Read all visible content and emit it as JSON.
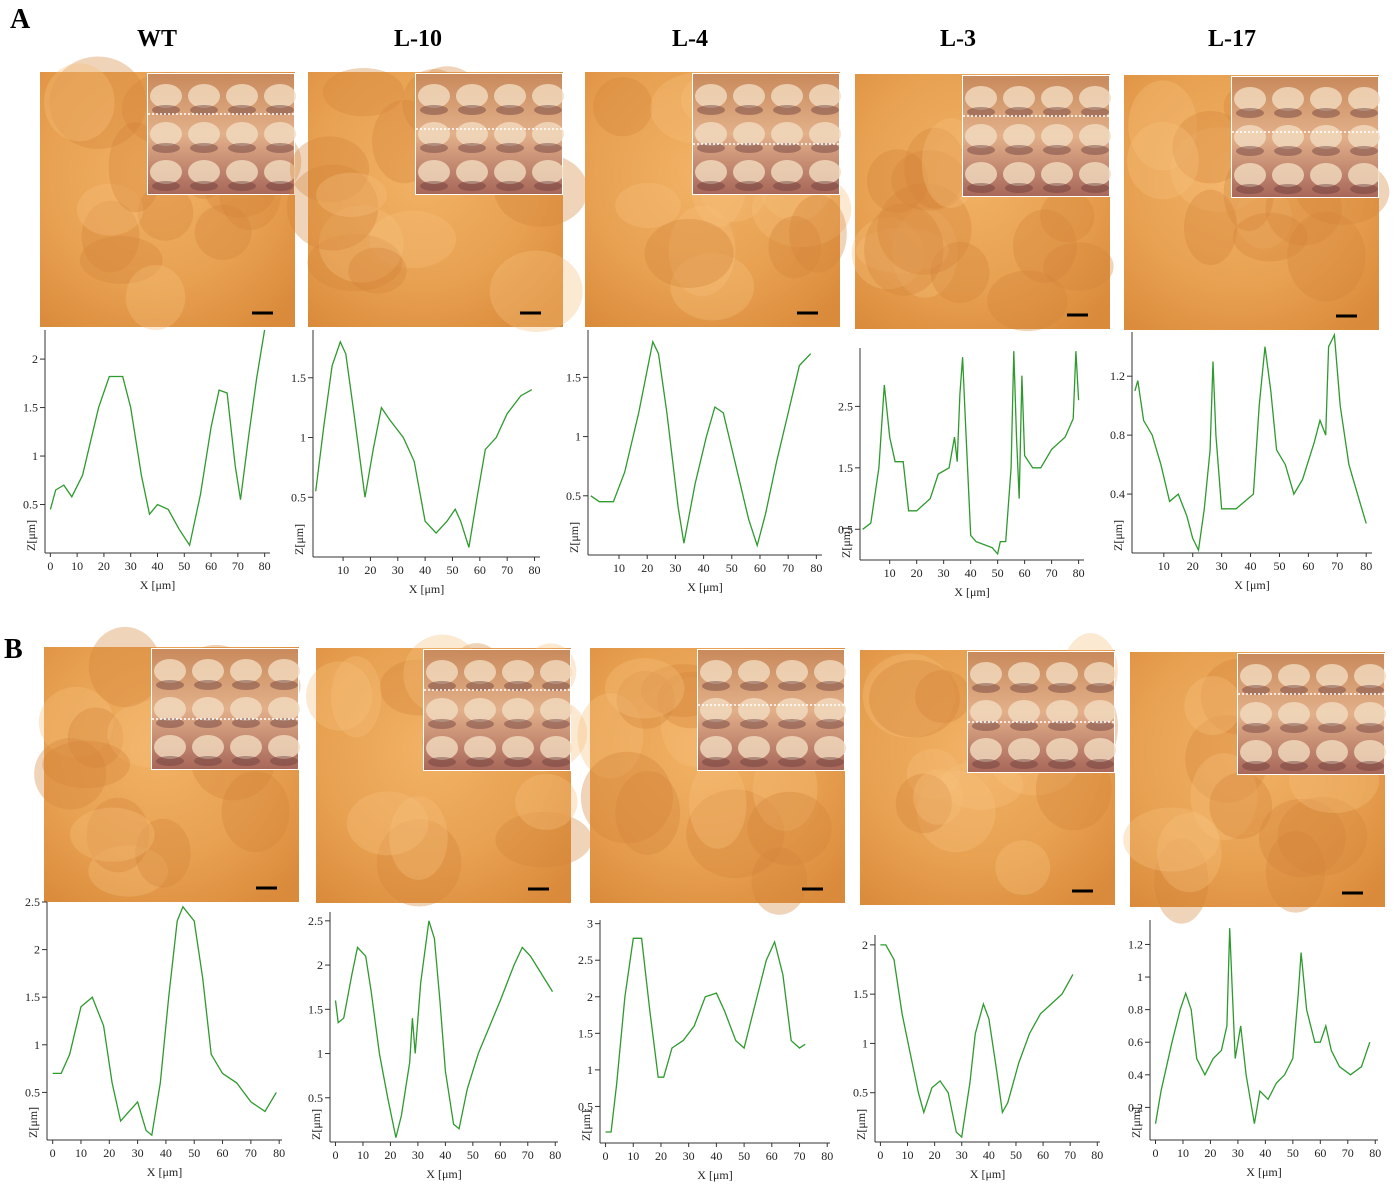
{
  "panel_labels": [
    "A",
    "B"
  ],
  "chart_data": [
    {
      "type": "line",
      "title": "WT",
      "xlabel": "X [μm]",
      "ylabel": "Z[μm]",
      "xlim": [
        -2,
        82
      ],
      "ylim": [
        0,
        2.3
      ],
      "xticks": [
        0,
        10,
        20,
        30,
        40,
        50,
        60,
        70,
        80
      ],
      "yticks": [
        0.5,
        1,
        1.5,
        2
      ],
      "x": [
        0,
        2,
        5,
        8,
        12,
        18,
        22,
        27,
        30,
        34,
        37,
        40,
        44,
        48,
        52,
        56,
        60,
        63,
        66,
        69,
        71,
        74,
        77,
        80
      ],
      "series": [
        {
          "color": "#2e9a2e",
          "values": [
            0.45,
            0.65,
            0.7,
            0.58,
            0.8,
            1.5,
            1.82,
            1.82,
            1.5,
            0.8,
            0.4,
            0.5,
            0.45,
            0.25,
            0.08,
            0.6,
            1.3,
            1.68,
            1.65,
            0.9,
            0.55,
            1.2,
            1.8,
            2.3
          ]
        }
      ]
    },
    {
      "type": "line",
      "title": "L-10",
      "xlabel": "X [μm]",
      "ylabel": "Z[μm]",
      "xlim": [
        -1,
        82
      ],
      "ylim": [
        0,
        1.9
      ],
      "xticks": [
        10,
        20,
        30,
        40,
        50,
        60,
        70,
        80
      ],
      "yticks": [
        0.5,
        1,
        1.5
      ],
      "x": [
        0,
        3,
        6,
        9,
        11,
        14,
        18,
        21,
        24,
        27,
        32,
        36,
        40,
        44,
        48,
        51,
        53,
        56,
        59,
        62,
        66,
        70,
        75,
        79
      ],
      "series": [
        {
          "color": "#2e9a2e",
          "values": [
            0.55,
            1.1,
            1.6,
            1.8,
            1.7,
            1.2,
            0.5,
            0.9,
            1.25,
            1.15,
            1.0,
            0.8,
            0.3,
            0.2,
            0.3,
            0.4,
            0.3,
            0.08,
            0.5,
            0.9,
            1.0,
            1.2,
            1.35,
            1.4
          ]
        }
      ]
    },
    {
      "type": "line",
      "title": "L-4",
      "xlabel": "X [μm]",
      "ylabel": "Z[μm]",
      "xlim": [
        -1,
        82
      ],
      "ylim": [
        0,
        1.9
      ],
      "xticks": [
        10,
        20,
        30,
        40,
        50,
        60,
        70,
        80
      ],
      "yticks": [
        0.5,
        1,
        1.5
      ],
      "x": [
        0,
        3,
        8,
        12,
        17,
        22,
        24,
        27,
        31,
        33,
        37,
        41,
        44,
        47,
        51,
        56,
        59,
        62,
        66,
        70,
        74,
        78
      ],
      "series": [
        {
          "color": "#2e9a2e",
          "values": [
            0.5,
            0.45,
            0.45,
            0.7,
            1.2,
            1.8,
            1.7,
            1.2,
            0.4,
            0.1,
            0.6,
            1.0,
            1.25,
            1.2,
            0.8,
            0.3,
            0.08,
            0.35,
            0.8,
            1.2,
            1.6,
            1.7
          ]
        }
      ]
    },
    {
      "type": "line",
      "title": "L-3",
      "xlabel": "X [μm]",
      "ylabel": "Z[μm]",
      "xlim": [
        -1,
        82
      ],
      "ylim": [
        0,
        3.45
      ],
      "xticks": [
        10,
        20,
        30,
        40,
        50,
        60,
        70,
        80
      ],
      "yticks": [
        0.5,
        1.5,
        2.5
      ],
      "x": [
        0,
        3,
        6,
        8,
        10,
        12,
        15,
        17,
        20,
        25,
        28,
        32,
        34,
        35,
        36,
        37,
        38,
        40,
        42,
        45,
        48,
        50,
        51,
        53,
        55,
        56,
        57,
        58,
        59,
        60,
        63,
        66,
        70,
        75,
        78,
        79,
        80
      ],
      "series": [
        {
          "color": "#2e9a2e",
          "values": [
            0.5,
            0.6,
            1.5,
            2.85,
            2.0,
            1.6,
            1.6,
            0.8,
            0.8,
            1.0,
            1.4,
            1.5,
            2.0,
            1.6,
            2.7,
            3.3,
            2.3,
            0.4,
            0.3,
            0.25,
            0.2,
            0.1,
            0.3,
            0.3,
            1.5,
            3.4,
            2.0,
            1.0,
            3.0,
            1.7,
            1.5,
            1.5,
            1.8,
            2.0,
            2.3,
            3.4,
            2.6
          ]
        }
      ]
    },
    {
      "type": "line",
      "title": "L-17",
      "xlabel": "X [μm]",
      "ylabel": "Z[μm]",
      "xlim": [
        -1,
        82
      ],
      "ylim": [
        0,
        1.5
      ],
      "xticks": [
        10,
        20,
        30,
        40,
        50,
        60,
        70,
        80
      ],
      "yticks": [
        0.4,
        0.8,
        1.2
      ],
      "x": [
        0,
        1,
        3,
        6,
        9,
        12,
        15,
        18,
        20,
        22,
        24,
        26,
        27,
        28,
        30,
        35,
        38,
        41,
        43,
        45,
        47,
        49,
        52,
        55,
        58,
        62,
        64,
        66,
        67,
        69,
        71,
        74,
        77,
        80
      ],
      "series": [
        {
          "color": "#2e9a2e",
          "values": [
            1.1,
            1.17,
            0.9,
            0.8,
            0.6,
            0.35,
            0.4,
            0.25,
            0.1,
            0.02,
            0.3,
            0.7,
            1.3,
            0.8,
            0.3,
            0.3,
            0.35,
            0.4,
            1.0,
            1.4,
            1.1,
            0.7,
            0.6,
            0.4,
            0.5,
            0.75,
            0.9,
            0.8,
            1.4,
            1.48,
            1.0,
            0.6,
            0.4,
            0.2
          ]
        }
      ]
    },
    {
      "type": "line",
      "xlabel": "X [μm]",
      "ylabel": "Z[μm]",
      "xlim": [
        -2,
        81
      ],
      "ylim": [
        0,
        2.5
      ],
      "xticks": [
        0,
        10,
        20,
        30,
        40,
        50,
        60,
        70,
        80
      ],
      "yticks": [
        0.5,
        1,
        1.5,
        2,
        2.5
      ],
      "x": [
        0,
        3,
        6,
        10,
        14,
        18,
        21,
        24,
        27,
        30,
        33,
        35,
        38,
        41,
        44,
        46,
        50,
        53,
        56,
        60,
        65,
        70,
        75,
        79
      ],
      "series": [
        {
          "color": "#2e9a2e",
          "values": [
            0.7,
            0.7,
            0.9,
            1.4,
            1.5,
            1.2,
            0.6,
            0.2,
            0.3,
            0.4,
            0.1,
            0.05,
            0.6,
            1.5,
            2.3,
            2.45,
            2.3,
            1.7,
            0.9,
            0.7,
            0.6,
            0.4,
            0.3,
            0.5
          ]
        }
      ]
    },
    {
      "type": "line",
      "xlabel": "X [μm]",
      "ylabel": "Z[μm]",
      "xlim": [
        -2,
        81
      ],
      "ylim": [
        0,
        2.6
      ],
      "xticks": [
        0,
        10,
        20,
        30,
        40,
        50,
        60,
        70,
        80
      ],
      "yticks": [
        0.5,
        1,
        1.5,
        2,
        2.5
      ],
      "x": [
        0,
        1,
        3,
        6,
        8,
        11,
        13,
        16,
        19,
        22,
        24,
        27,
        28,
        29,
        31,
        34,
        36,
        38,
        40,
        43,
        45,
        48,
        52,
        56,
        60,
        65,
        68,
        71,
        75,
        79
      ],
      "series": [
        {
          "color": "#2e9a2e",
          "values": [
            1.6,
            1.35,
            1.4,
            1.9,
            2.2,
            2.1,
            1.7,
            1.0,
            0.5,
            0.05,
            0.3,
            0.9,
            1.4,
            1.0,
            1.8,
            2.5,
            2.3,
            1.6,
            0.8,
            0.2,
            0.15,
            0.6,
            1.0,
            1.3,
            1.6,
            2.0,
            2.2,
            2.1,
            1.9,
            1.7
          ]
        }
      ]
    },
    {
      "type": "line",
      "xlabel": "X [μm]",
      "ylabel": "Z[μm]",
      "xlim": [
        -2,
        81
      ],
      "ylim": [
        0,
        3.05
      ],
      "xticks": [
        0,
        10,
        20,
        30,
        40,
        50,
        60,
        70,
        80
      ],
      "yticks": [
        0.5,
        1,
        1.5,
        2,
        2.5,
        3
      ],
      "x": [
        0,
        2,
        4,
        7,
        10,
        13,
        16,
        19,
        21,
        24,
        28,
        32,
        36,
        40,
        43,
        47,
        50,
        54,
        58,
        61,
        64,
        67,
        70,
        72
      ],
      "series": [
        {
          "color": "#2e9a2e",
          "values": [
            0.15,
            0.15,
            0.8,
            2.0,
            2.8,
            2.8,
            1.8,
            0.9,
            0.9,
            1.3,
            1.4,
            1.6,
            2.0,
            2.05,
            1.8,
            1.4,
            1.3,
            1.9,
            2.5,
            2.75,
            2.3,
            1.4,
            1.3,
            1.35
          ]
        }
      ]
    },
    {
      "type": "line",
      "xlabel": "X [μm]",
      "ylabel": "Z[μm]",
      "xlim": [
        -2,
        81
      ],
      "ylim": [
        0,
        2.1
      ],
      "xticks": [
        0,
        10,
        20,
        30,
        40,
        50,
        60,
        70,
        80
      ],
      "yticks": [
        0.5,
        1,
        1.5,
        2
      ],
      "x": [
        0,
        2,
        5,
        8,
        11,
        14,
        16,
        19,
        22,
        25,
        28,
        30,
        33,
        35,
        38,
        40,
        43,
        45,
        47,
        51,
        55,
        59,
        63,
        67,
        71
      ],
      "series": [
        {
          "color": "#2e9a2e",
          "values": [
            2.0,
            2.0,
            1.85,
            1.3,
            0.9,
            0.5,
            0.3,
            0.55,
            0.62,
            0.5,
            0.1,
            0.05,
            0.6,
            1.1,
            1.4,
            1.25,
            0.7,
            0.3,
            0.4,
            0.8,
            1.1,
            1.3,
            1.4,
            1.5,
            1.7
          ]
        }
      ]
    },
    {
      "type": "line",
      "xlabel": "X [μm]",
      "ylabel": "Z[μm]",
      "xlim": [
        -2,
        81
      ],
      "ylim": [
        0,
        1.35
      ],
      "xticks": [
        0,
        10,
        20,
        30,
        40,
        50,
        60,
        70,
        80
      ],
      "yticks": [
        0.2,
        0.4,
        0.6,
        0.8,
        1,
        1.2
      ],
      "x": [
        0,
        2,
        4,
        6,
        9,
        11,
        13,
        15,
        18,
        21,
        24,
        26,
        27,
        28,
        29,
        31,
        33,
        36,
        38,
        41,
        44,
        47,
        50,
        52,
        53,
        55,
        58,
        60,
        62,
        64,
        67,
        71,
        75,
        78
      ],
      "series": [
        {
          "color": "#2e9a2e",
          "values": [
            0.1,
            0.3,
            0.45,
            0.6,
            0.8,
            0.9,
            0.8,
            0.5,
            0.4,
            0.5,
            0.55,
            0.7,
            1.3,
            0.9,
            0.5,
            0.7,
            0.4,
            0.1,
            0.3,
            0.25,
            0.35,
            0.4,
            0.5,
            0.9,
            1.15,
            0.8,
            0.6,
            0.6,
            0.7,
            0.55,
            0.45,
            0.4,
            0.45,
            0.6
          ]
        }
      ]
    }
  ]
}
